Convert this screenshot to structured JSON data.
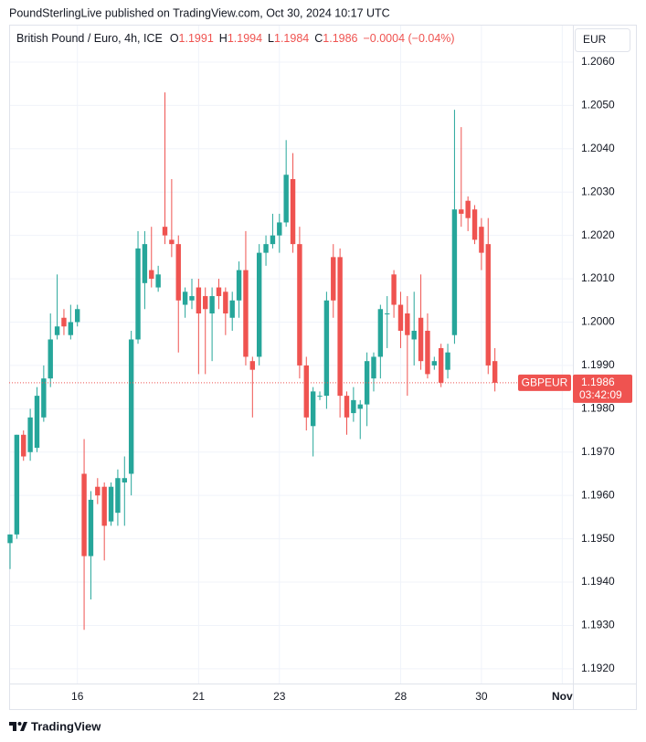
{
  "chart_data": {
    "type": "candlestick",
    "title": "PoundSterlingLive published on TradingView.com, Oct 30, 2024 10:17 UTC",
    "symbol": "British Pound / Euro, 4h, ICE",
    "legend": {
      "open_label": "O",
      "open": 1.1991,
      "high_label": "H",
      "high": 1.1994,
      "low_label": "L",
      "low": 1.1984,
      "close_label": "C",
      "close": 1.1986,
      "change": "−0.0004 (−0.04%)"
    },
    "currency": "EUR",
    "price_tag": {
      "symbol": "GBPEUR",
      "price": 1.1986,
      "countdown": "03:42:09"
    },
    "brand": "TradingView",
    "up_color": "#26a69a",
    "down_color": "#ef5350",
    "grid": true,
    "categories": [
      null,
      null,
      null,
      null,
      null,
      null,
      null,
      null,
      null,
      null,
      "16",
      null,
      null,
      null,
      null,
      null,
      null,
      null,
      null,
      null,
      null,
      null,
      null,
      null,
      null,
      null,
      null,
      null,
      "21",
      null,
      null,
      null,
      null,
      null,
      null,
      null,
      null,
      null,
      null,
      null,
      "23",
      null,
      null,
      null,
      null,
      null,
      null,
      null,
      null,
      null,
      null,
      null,
      null,
      null,
      null,
      null,
      null,
      null,
      "28",
      null,
      null,
      null,
      null,
      null,
      null,
      null,
      null,
      null,
      null,
      null,
      "30",
      null,
      null,
      null,
      null,
      null,
      null,
      null,
      null,
      null,
      null,
      null,
      "Nov",
      null
    ],
    "open": [
      1.1949,
      1.1951,
      1.1974,
      1.197,
      1.1971,
      1.1978,
      1.1987,
      1.1997,
      1.2001,
      1.1997,
      1.2,
      1.1965,
      1.1946,
      1.1962,
      1.1962,
      1.1954,
      1.1956,
      1.1963,
      1.1965,
      1.1996,
      1.2009,
      1.2012,
      1.2008,
      1.2022,
      1.2019,
      1.2018,
      1.2004,
      1.2005,
      1.2008,
      1.2006,
      1.2002,
      1.2008,
      1.2007,
      1.2001,
      1.2005,
      1.2012,
      1.1991,
      1.1992,
      1.2016,
      1.2018,
      1.202,
      1.2023,
      1.2033,
      1.2018,
      1.199,
      1.1976,
      1.1983,
      1.1983,
      1.2015,
      1.2015,
      1.1983,
      1.1979,
      1.198,
      1.1981,
      1.1987,
      1.1992,
      1.2002,
      1.2011,
      1.2004,
      1.2002,
      1.1996,
      1.2001,
      1.1998,
      1.199,
      1.1994,
      1.1989,
      1.1997,
      1.2026,
      1.2028,
      1.2026,
      1.2022,
      1.2018,
      1.1991,
      null,
      null,
      null,
      null,
      null,
      null,
      null,
      null,
      null,
      null,
      null
    ],
    "high": [
      1.1951,
      1.1974,
      1.1975,
      1.198,
      1.1985,
      1.199,
      1.2002,
      1.2011,
      1.2003,
      1.2004,
      1.2004,
      1.1973,
      1.1961,
      1.1964,
      1.1963,
      1.1963,
      1.1966,
      1.1969,
      1.1998,
      1.2021,
      1.2021,
      1.2022,
      1.2013,
      1.2053,
      1.2033,
      1.202,
      1.2008,
      1.201,
      1.201,
      1.2008,
      1.2008,
      1.201,
      1.2008,
      1.2007,
      1.2014,
      1.2021,
      1.1992,
      1.2018,
      1.202,
      1.2025,
      1.2025,
      1.2042,
      1.2039,
      1.2022,
      1.1992,
      1.1985,
      1.1984,
      1.2007,
      1.2018,
      1.2017,
      1.1984,
      1.1985,
      1.1982,
      1.1993,
      1.1993,
      1.2004,
      1.2006,
      1.2012,
      1.2007,
      1.2006,
      1.2007,
      1.2011,
      1.2002,
      1.1992,
      1.1995,
      1.1995,
      1.2049,
      1.2045,
      1.2029,
      1.2027,
      1.2024,
      1.2024,
      1.1994,
      null,
      null,
      null,
      null,
      null,
      null,
      null,
      null,
      null,
      null,
      null
    ],
    "low": [
      1.1943,
      1.195,
      1.1968,
      1.1968,
      1.197,
      1.1977,
      1.1985,
      1.1996,
      1.1997,
      1.1996,
      1.1999,
      1.1929,
      1.1936,
      1.1958,
      1.1945,
      1.1953,
      1.1953,
      1.1953,
      1.196,
      1.1995,
      1.2003,
      1.2008,
      1.2007,
      1.2018,
      1.2015,
      1.1993,
      1.2001,
      1.2003,
      1.1988,
      1.1988,
      1.1991,
      1.2003,
      1.1997,
      1.1998,
      1.2001,
      1.199,
      1.1978,
      1.199,
      1.2013,
      1.2017,
      1.2016,
      1.2022,
      1.2016,
      1.1987,
      1.1975,
      1.1969,
      1.1982,
      1.198,
      1.2001,
      1.1978,
      1.1974,
      1.1977,
      1.1973,
      1.1976,
      1.1984,
      1.1987,
      1.1994,
      1.2001,
      1.1994,
      1.1983,
      1.199,
      1.1989,
      1.1987,
      1.1989,
      1.1985,
      1.1987,
      1.1995,
      1.2022,
      1.2021,
      1.2018,
      1.2012,
      1.1988,
      1.1984,
      null,
      null,
      null,
      null,
      null,
      null,
      null,
      null,
      null,
      null,
      null
    ],
    "close": [
      1.1951,
      1.1974,
      1.1969,
      1.1978,
      1.1983,
      1.1987,
      1.1996,
      1.1999,
      1.1999,
      1.2,
      1.2003,
      1.1946,
      1.1959,
      1.196,
      1.1953,
      1.1962,
      1.1964,
      1.1964,
      1.1996,
      1.2017,
      1.2018,
      1.201,
      1.2011,
      1.202,
      1.2018,
      1.2005,
      1.2007,
      1.2006,
      1.2002,
      1.2003,
      1.2006,
      1.2006,
      1.2002,
      1.2005,
      1.2012,
      1.1992,
      1.1989,
      1.2016,
      1.2018,
      1.202,
      1.2023,
      1.2034,
      1.2018,
      1.199,
      1.1978,
      1.1984,
      1.1983,
      1.2005,
      1.2005,
      1.1983,
      1.1978,
      1.1982,
      1.1981,
      1.1991,
      1.1992,
      1.2003,
      1.2002,
      1.2004,
      1.1998,
      1.1997,
      1.1998,
      1.1991,
      1.1988,
      1.1991,
      1.1986,
      1.1993,
      1.2026,
      1.2025,
      1.2024,
      1.2019,
      1.2016,
      1.199,
      1.1986,
      null,
      null,
      null,
      null,
      null,
      null,
      null,
      null,
      null,
      null,
      null
    ],
    "ylim": [
      1.19166,
      1.20621
    ],
    "yticks": [
      {
        "value": 1.192,
        "label": "1.1920"
      },
      {
        "value": 1.193,
        "label": "1.1930"
      },
      {
        "value": 1.194,
        "label": "1.1940"
      },
      {
        "value": 1.195,
        "label": "1.1950"
      },
      {
        "value": 1.196,
        "label": "1.1960"
      },
      {
        "value": 1.197,
        "label": "1.1970"
      },
      {
        "value": 1.198,
        "label": "1.1980"
      },
      {
        "value": 1.199,
        "label": "1.1990"
      },
      {
        "value": 1.2,
        "label": "1.2000"
      },
      {
        "value": 1.201,
        "label": "1.2010"
      },
      {
        "value": 1.202,
        "label": "1.2020"
      },
      {
        "value": 1.203,
        "label": "1.2030"
      },
      {
        "value": 1.204,
        "label": "1.2040"
      },
      {
        "value": 1.205,
        "label": "1.2050"
      },
      {
        "value": 1.206,
        "label": "1.2060"
      }
    ]
  }
}
